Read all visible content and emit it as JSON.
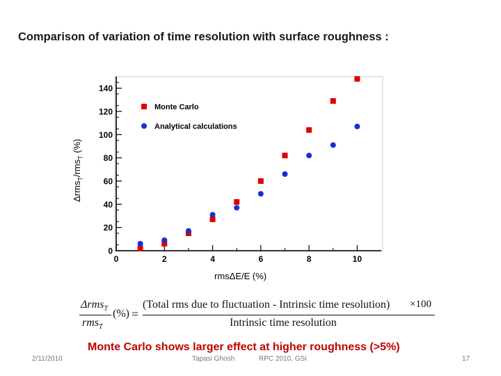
{
  "slide": {
    "title": "Comparison of variation of time resolution with surface roughness :",
    "ylabel_prefix": "Δrms",
    "ylabel_sub1": "T",
    "ylabel_mid": "/rms",
    "ylabel_sub2": "T",
    "ylabel_suffix": "  (%)",
    "xlabel": "rmsΔE/E  (%)",
    "formula": {
      "lhs_num": "Δrms",
      "lhs_num_sub": "T",
      "lhs_den": "rms",
      "lhs_den_sub": "T",
      "lhs_unit": "(%)",
      "equals": "=",
      "rhs_num": "(Total rms due to fluctuation - Intrinsic time resolution)",
      "rhs_times": "×100",
      "rhs_den": "Intrinsic time resolution"
    },
    "conclusion": "Monte Carlo shows larger effect at higher roughness (>5%)",
    "footer": {
      "date": "2/11/2010",
      "author": "Tapasi Ghosh",
      "event": "RPC 2010, GSI",
      "page": "17"
    }
  },
  "colors": {
    "monte_carlo": "#e00000",
    "analytical": "#1a2ed8",
    "title": "#1a1a1a",
    "conclusion": "#c00000"
  },
  "chart_data": {
    "type": "scatter",
    "title": "",
    "xlabel": "rmsΔE/E  (%)",
    "ylabel": "Δrms_T/rms_T  (%)",
    "xlim": [
      0,
      11
    ],
    "ylim": [
      0,
      150
    ],
    "xticks": [
      0,
      2,
      4,
      6,
      8,
      10
    ],
    "yticks": [
      0,
      20,
      40,
      60,
      80,
      100,
      120,
      140
    ],
    "grid": false,
    "legend": "top-left",
    "series": [
      {
        "name": "Monte Carlo",
        "marker": "square",
        "color": "#e00000",
        "x": [
          1,
          2,
          3,
          4,
          5,
          6,
          7,
          8,
          9,
          10
        ],
        "y": [
          2,
          6,
          15,
          27,
          42,
          60,
          82,
          104,
          129,
          148
        ]
      },
      {
        "name": "Analytical calculations",
        "marker": "circle",
        "color": "#1a2ed8",
        "x": [
          1,
          2,
          3,
          4,
          5,
          6,
          7,
          8,
          9,
          10
        ],
        "y": [
          6,
          9,
          17,
          31,
          37,
          49,
          66,
          82,
          91,
          107
        ]
      }
    ]
  }
}
